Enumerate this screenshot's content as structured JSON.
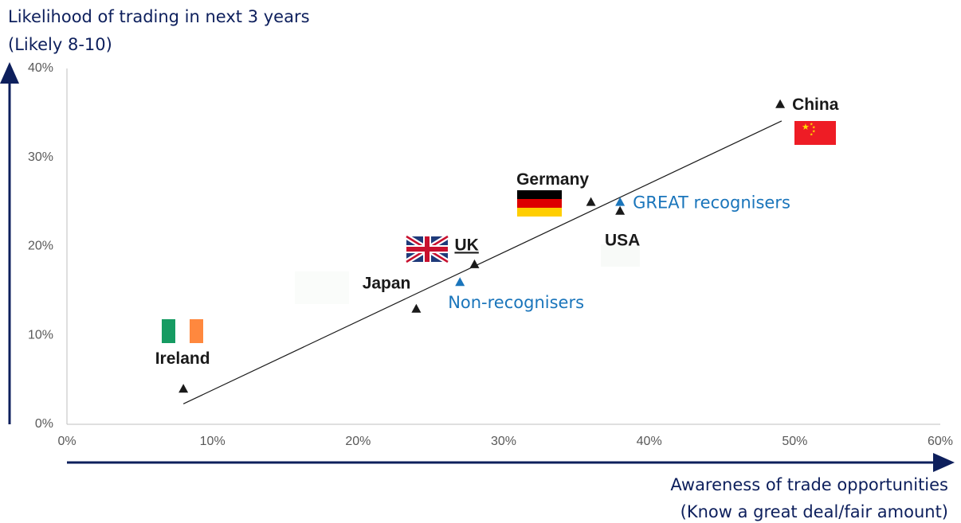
{
  "chart_data": {
    "type": "scatter",
    "y_label": [
      "Likelihood of trading in next 3 years",
      "(Likely 8-10)"
    ],
    "x_label": [
      "Awareness of trade opportunities",
      "(Know a great deal/fair amount)"
    ],
    "xlim": [
      0,
      60
    ],
    "xticks": [
      {
        "value": 0,
        "label": "0%"
      },
      {
        "value": 10,
        "label": "10%"
      },
      {
        "value": 20,
        "label": "20%"
      },
      {
        "value": 30,
        "label": "30%"
      },
      {
        "value": 40,
        "label": "40%"
      },
      {
        "value": 50,
        "label": "50%"
      },
      {
        "value": 60,
        "label": "60%"
      }
    ],
    "ylim": [
      0,
      40
    ],
    "yticks": [
      {
        "value": 0,
        "label": "0%"
      },
      {
        "value": 10,
        "label": "10%"
      },
      {
        "value": 20,
        "label": "20%"
      },
      {
        "value": 30,
        "label": "30%"
      },
      {
        "value": 40,
        "label": "40%"
      }
    ],
    "points": [
      {
        "label": "Ireland",
        "x": 8,
        "y": 4,
        "color": "#1a1a1a"
      },
      {
        "label": "Japan",
        "x": 24,
        "y": 13,
        "color": "#1a1a1a"
      },
      {
        "label": "UK",
        "x": 28,
        "y": 18,
        "color": "#1a1a1a"
      },
      {
        "label": "Non-recognisers",
        "x": 27,
        "y": 16,
        "color": "#1a75bb"
      },
      {
        "label": "Germany",
        "x": 36,
        "y": 25,
        "color": "#1a1a1a"
      },
      {
        "label": "USA",
        "x": 38,
        "y": 24,
        "color": "#1a1a1a"
      },
      {
        "label": "GREAT recognisers",
        "x": 38,
        "y": 25,
        "color": "#1a75bb"
      },
      {
        "label": "China",
        "x": 49,
        "y": 36,
        "color": "#1a1a1a"
      }
    ],
    "trendline": {
      "x": [
        8,
        49.1
      ],
      "values": [
        2.3,
        34.1
      ],
      "color": "#1a1a1a"
    }
  }
}
